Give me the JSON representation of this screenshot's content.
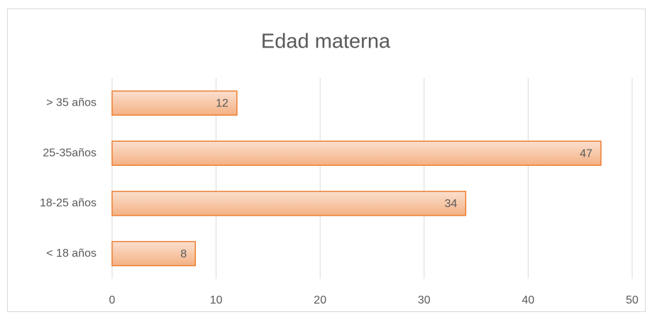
{
  "chart_data": {
    "type": "bar",
    "orientation": "horizontal",
    "title": "Edad materna",
    "categories": [
      "> 35 años",
      "25-35años",
      "18-25 años",
      "< 18 años"
    ],
    "values": [
      12,
      47,
      34,
      8
    ],
    "color": "#f4b183",
    "edge_color": "#ed7d31",
    "xlim": [
      0,
      50
    ],
    "xticks": [
      0,
      10,
      20,
      30,
      40,
      50
    ],
    "grid": true
  }
}
